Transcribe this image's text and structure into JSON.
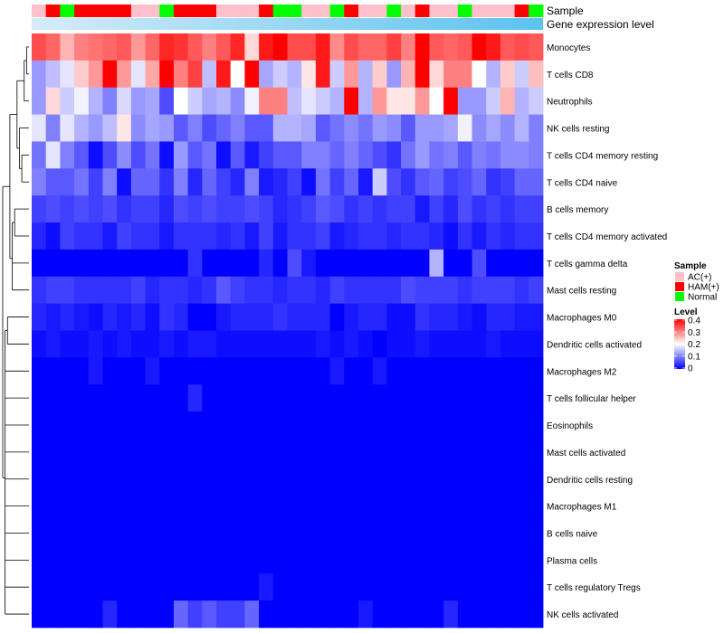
{
  "chart_data": {
    "type": "heatmap",
    "annotation_tracks": [
      "Sample",
      "Gene expression level"
    ],
    "sample_groups": [
      "AC(+)",
      "HAM(+)",
      "Normal",
      "HAM(+)",
      "HAM(+)",
      "HAM(+)",
      "HAM(+)",
      "AC(+)",
      "AC(+)",
      "Normal",
      "HAM(+)",
      "HAM(+)",
      "HAM(+)",
      "AC(+)",
      "AC(+)",
      "AC(+)",
      "HAM(+)",
      "Normal",
      "Normal",
      "AC(+)",
      "AC(+)",
      "Normal",
      "HAM(+)",
      "AC(+)",
      "AC(+)",
      "Normal",
      "AC(+)",
      "HAM(+)",
      "AC(+)",
      "AC(+)",
      "Normal",
      "AC(+)",
      "AC(+)",
      "AC(+)",
      "HAM(+)",
      "Normal"
    ],
    "rows": [
      "Monocytes",
      "T cells CD8",
      "Neutrophils",
      "NK cells resting",
      "T cells CD4 memory resting",
      "T cells CD4 naive",
      "B cells memory",
      "T cells CD4 memory activated",
      "T cells gamma delta",
      "Mast cells resting",
      "Macrophages M0",
      "Dendritic cells activated",
      "Macrophages M2",
      "T cells follicular helper",
      "Eosinophils",
      "Mast cells activated",
      "Dendritic cells resting",
      "Macrophages M1",
      "B cells naive",
      "Plasma cells",
      "T cells regulatory  Tregs",
      "NK cells activated"
    ],
    "values": [
      [
        0.34,
        0.32,
        0.26,
        0.3,
        0.31,
        0.32,
        0.33,
        0.28,
        0.32,
        0.37,
        0.36,
        0.33,
        0.3,
        0.33,
        0.37,
        0.23,
        0.38,
        0.4,
        0.34,
        0.34,
        0.38,
        0.29,
        0.34,
        0.32,
        0.32,
        0.35,
        0.3,
        0.4,
        0.33,
        0.32,
        0.33,
        0.4,
        0.38,
        0.33,
        0.34,
        0.33
      ],
      [
        0.12,
        0.15,
        0.18,
        0.24,
        0.28,
        0.4,
        0.28,
        0.18,
        0.27,
        0.4,
        0.3,
        0.35,
        0.15,
        0.38,
        0.2,
        0.4,
        0.13,
        0.16,
        0.14,
        0.22,
        0.38,
        0.16,
        0.28,
        0.14,
        0.24,
        0.12,
        0.26,
        0.4,
        0.23,
        0.3,
        0.3,
        0.2,
        0.14,
        0.24,
        0.16,
        0.25
      ],
      [
        0.12,
        0.23,
        0.16,
        0.19,
        0.14,
        0.1,
        0.17,
        0.12,
        0.13,
        0.06,
        0.2,
        0.16,
        0.13,
        0.14,
        0.11,
        0.19,
        0.3,
        0.3,
        0.15,
        0.18,
        0.16,
        0.14,
        0.4,
        0.14,
        0.28,
        0.22,
        0.22,
        0.28,
        0.2,
        0.4,
        0.12,
        0.12,
        0.16,
        0.26,
        0.14,
        0.16
      ],
      [
        0.18,
        0.1,
        0.18,
        0.14,
        0.12,
        0.15,
        0.22,
        0.11,
        0.13,
        0.12,
        0.07,
        0.1,
        0.06,
        0.08,
        0.1,
        0.07,
        0.07,
        0.14,
        0.14,
        0.13,
        0.07,
        0.09,
        0.11,
        0.09,
        0.12,
        0.11,
        0.07,
        0.12,
        0.12,
        0.13,
        0.19,
        0.11,
        0.13,
        0.11,
        0.14,
        0.1
      ],
      [
        0.09,
        0.18,
        0.1,
        0.07,
        0.01,
        0.06,
        0.11,
        0.06,
        0.09,
        0.01,
        0.12,
        0.07,
        0.09,
        0.01,
        0.07,
        0.02,
        0.05,
        0.07,
        0.07,
        0.1,
        0.1,
        0.08,
        0.1,
        0.08,
        0.06,
        0.04,
        0.09,
        0.12,
        0.09,
        0.1,
        0.07,
        0.1,
        0.09,
        0.11,
        0.11,
        0.1
      ],
      [
        0.1,
        0.07,
        0.07,
        0.09,
        0.05,
        0.1,
        0.01,
        0.08,
        0.08,
        0.04,
        0.1,
        0.03,
        0.08,
        0.05,
        0.03,
        0.1,
        0.02,
        0.03,
        0.05,
        0.01,
        0.09,
        0.05,
        0.08,
        0.02,
        0.16,
        0.06,
        0.04,
        0.07,
        0.08,
        0.05,
        0.06,
        0.08,
        0.04,
        0.05,
        0.08,
        0.08
      ],
      [
        0.05,
        0.06,
        0.05,
        0.06,
        0.05,
        0.06,
        0.04,
        0.05,
        0.05,
        0.03,
        0.06,
        0.05,
        0.06,
        0.05,
        0.05,
        0.06,
        0.05,
        0.03,
        0.04,
        0.05,
        0.07,
        0.06,
        0.04,
        0.05,
        0.04,
        0.05,
        0.05,
        0.02,
        0.05,
        0.03,
        0.06,
        0.04,
        0.05,
        0.04,
        0.05,
        0.05
      ],
      [
        0.03,
        0.01,
        0.05,
        0.04,
        0.04,
        0.02,
        0.05,
        0.04,
        0.04,
        0.02,
        0.04,
        0.04,
        0.04,
        0.03,
        0.04,
        0.02,
        0.05,
        0.02,
        0.04,
        0.04,
        0.05,
        0.02,
        0.03,
        0.04,
        0.04,
        0.03,
        0.04,
        0.04,
        0.03,
        0.01,
        0.04,
        0.02,
        0.04,
        0.03,
        0.04,
        0.04
      ],
      [
        0.0,
        0.0,
        0.0,
        0.0,
        0.0,
        0.0,
        0.0,
        0.0,
        0.0,
        0.0,
        0.0,
        0.04,
        0.0,
        0.0,
        0.0,
        0.0,
        0.03,
        0.0,
        0.06,
        0.02,
        0.0,
        0.0,
        0.0,
        0.0,
        0.0,
        0.0,
        0.0,
        0.0,
        0.14,
        0.0,
        0.0,
        0.06,
        0.0,
        0.0,
        0.0,
        0.0
      ],
      [
        0.04,
        0.05,
        0.05,
        0.04,
        0.04,
        0.04,
        0.04,
        0.05,
        0.03,
        0.04,
        0.04,
        0.03,
        0.04,
        0.07,
        0.05,
        0.04,
        0.04,
        0.03,
        0.04,
        0.04,
        0.03,
        0.05,
        0.04,
        0.04,
        0.04,
        0.04,
        0.06,
        0.05,
        0.05,
        0.05,
        0.04,
        0.05,
        0.05,
        0.05,
        0.04,
        0.05
      ],
      [
        0.03,
        0.02,
        0.03,
        0.02,
        0.01,
        0.03,
        0.02,
        0.03,
        0.01,
        0.04,
        0.03,
        0.0,
        0.0,
        0.02,
        0.03,
        0.03,
        0.03,
        0.04,
        0.03,
        0.03,
        0.03,
        0.0,
        0.02,
        0.03,
        0.03,
        0.01,
        0.01,
        0.04,
        0.03,
        0.03,
        0.02,
        0.01,
        0.03,
        0.03,
        0.02,
        0.02
      ],
      [
        0.01,
        0.02,
        0.01,
        0.01,
        0.02,
        0.01,
        0.02,
        0.01,
        0.01,
        0.02,
        0.01,
        0.02,
        0.02,
        0.01,
        0.01,
        0.01,
        0.01,
        0.01,
        0.01,
        0.01,
        0.02,
        0.01,
        0.02,
        0.01,
        0.0,
        0.01,
        0.01,
        0.02,
        0.01,
        0.01,
        0.01,
        0.01,
        0.02,
        0.01,
        0.01,
        0.01
      ],
      [
        0.0,
        0.0,
        0.0,
        0.0,
        0.02,
        0.0,
        0.0,
        0.0,
        0.02,
        0.0,
        0.0,
        0.0,
        0.0,
        0.0,
        0.0,
        0.0,
        0.0,
        0.0,
        0.0,
        0.0,
        0.0,
        0.02,
        0.0,
        0.0,
        0.02,
        0.0,
        0.0,
        0.0,
        0.0,
        0.0,
        0.0,
        0.0,
        0.0,
        0.0,
        0.0,
        0.0
      ],
      [
        0.0,
        0.0,
        0.0,
        0.0,
        0.0,
        0.0,
        0.0,
        0.0,
        0.0,
        0.0,
        0.0,
        0.03,
        0.0,
        0.0,
        0.0,
        0.0,
        0.0,
        0.0,
        0.0,
        0.0,
        0.0,
        0.0,
        0.0,
        0.0,
        0.0,
        0.0,
        0.0,
        0.0,
        0.0,
        0.0,
        0.0,
        0.0,
        0.0,
        0.0,
        0.0,
        0.0
      ],
      [
        0.0,
        0.0,
        0.0,
        0.0,
        0.0,
        0.0,
        0.0,
        0.0,
        0.0,
        0.0,
        0.0,
        0.0,
        0.0,
        0.0,
        0.0,
        0.0,
        0.0,
        0.0,
        0.0,
        0.0,
        0.0,
        0.0,
        0.0,
        0.0,
        0.0,
        0.0,
        0.0,
        0.0,
        0.0,
        0.0,
        0.0,
        0.0,
        0.0,
        0.0,
        0.0,
        0.0
      ],
      [
        0.0,
        0.0,
        0.0,
        0.0,
        0.0,
        0.0,
        0.0,
        0.0,
        0.0,
        0.0,
        0.0,
        0.0,
        0.0,
        0.0,
        0.0,
        0.0,
        0.0,
        0.0,
        0.0,
        0.0,
        0.0,
        0.0,
        0.0,
        0.0,
        0.0,
        0.0,
        0.0,
        0.0,
        0.0,
        0.0,
        0.0,
        0.0,
        0.0,
        0.0,
        0.0,
        0.0
      ],
      [
        0.0,
        0.0,
        0.0,
        0.0,
        0.0,
        0.0,
        0.0,
        0.0,
        0.0,
        0.0,
        0.0,
        0.0,
        0.0,
        0.0,
        0.0,
        0.0,
        0.0,
        0.0,
        0.0,
        0.0,
        0.0,
        0.0,
        0.0,
        0.0,
        0.0,
        0.0,
        0.0,
        0.0,
        0.0,
        0.0,
        0.0,
        0.0,
        0.0,
        0.0,
        0.0,
        0.0
      ],
      [
        0.0,
        0.0,
        0.0,
        0.0,
        0.0,
        0.0,
        0.0,
        0.0,
        0.0,
        0.0,
        0.0,
        0.0,
        0.0,
        0.0,
        0.0,
        0.0,
        0.0,
        0.0,
        0.0,
        0.0,
        0.0,
        0.0,
        0.0,
        0.0,
        0.0,
        0.0,
        0.0,
        0.0,
        0.0,
        0.0,
        0.0,
        0.0,
        0.0,
        0.0,
        0.0,
        0.0
      ],
      [
        0.0,
        0.0,
        0.0,
        0.0,
        0.0,
        0.0,
        0.0,
        0.0,
        0.0,
        0.0,
        0.0,
        0.0,
        0.0,
        0.0,
        0.0,
        0.0,
        0.0,
        0.0,
        0.0,
        0.0,
        0.0,
        0.0,
        0.0,
        0.0,
        0.0,
        0.0,
        0.0,
        0.0,
        0.0,
        0.0,
        0.0,
        0.0,
        0.0,
        0.0,
        0.0,
        0.0
      ],
      [
        0.0,
        0.0,
        0.0,
        0.0,
        0.0,
        0.0,
        0.0,
        0.0,
        0.0,
        0.0,
        0.0,
        0.0,
        0.0,
        0.0,
        0.0,
        0.0,
        0.0,
        0.0,
        0.0,
        0.0,
        0.0,
        0.0,
        0.0,
        0.0,
        0.0,
        0.0,
        0.0,
        0.0,
        0.0,
        0.0,
        0.0,
        0.0,
        0.0,
        0.0,
        0.0,
        0.0
      ],
      [
        0.0,
        0.0,
        0.0,
        0.0,
        0.0,
        0.0,
        0.0,
        0.0,
        0.0,
        0.0,
        0.0,
        0.0,
        0.0,
        0.0,
        0.0,
        0.0,
        0.02,
        0.0,
        0.0,
        0.0,
        0.0,
        0.0,
        0.0,
        0.0,
        0.0,
        0.0,
        0.0,
        0.0,
        0.0,
        0.0,
        0.0,
        0.0,
        0.0,
        0.0,
        0.0,
        0.0
      ],
      [
        0.0,
        0.0,
        0.0,
        0.0,
        0.0,
        0.03,
        0.0,
        0.0,
        0.0,
        0.0,
        0.08,
        0.05,
        0.07,
        0.05,
        0.05,
        0.08,
        0.0,
        0.0,
        0.0,
        0.0,
        0.0,
        0.0,
        0.0,
        0.02,
        0.0,
        0.0,
        0.0,
        0.0,
        0.0,
        0.03,
        0.0,
        0.0,
        0.0,
        0.0,
        0.0,
        0.0
      ]
    ],
    "row_clusters": [
      [
        0,
        1
      ],
      [
        0,
        1,
        2
      ],
      [
        4,
        5
      ],
      [
        3,
        4,
        5
      ],
      [
        0,
        1,
        2,
        3,
        4,
        5
      ],
      [
        6,
        7
      ],
      [
        6,
        7,
        8,
        9
      ],
      [
        0,
        1,
        2,
        3,
        4,
        5,
        6,
        7,
        8,
        9
      ],
      [
        10,
        11
      ],
      [
        10,
        11,
        12,
        13,
        14,
        15,
        16,
        17,
        18,
        19,
        20,
        21
      ],
      [
        0,
        1,
        2,
        3,
        4,
        5,
        6,
        7,
        8,
        9,
        10,
        11,
        12,
        13,
        14,
        15,
        16,
        17,
        18,
        19,
        20,
        21
      ]
    ],
    "gene_expression_level": "Gene expression level",
    "legend": {
      "sample": {
        "title": "Sample",
        "items": [
          {
            "label": "AC(+)",
            "color": "#ffc0cb"
          },
          {
            "label": "HAM(+)",
            "color": "#ff0000"
          },
          {
            "label": "Normal",
            "color": "#00ff00"
          }
        ]
      },
      "level": {
        "title": "Level",
        "ticks": [
          "0.4",
          "0.3",
          "0.2",
          "0.1",
          "0"
        ],
        "range": [
          0,
          0.4
        ]
      }
    },
    "colors": {
      "low": "#0000ff",
      "mid": "#ffffff",
      "high": "#ff0000",
      "expression_bar": "#5bc2ef",
      "expression_bar_light": "#d6ecf8"
    }
  }
}
